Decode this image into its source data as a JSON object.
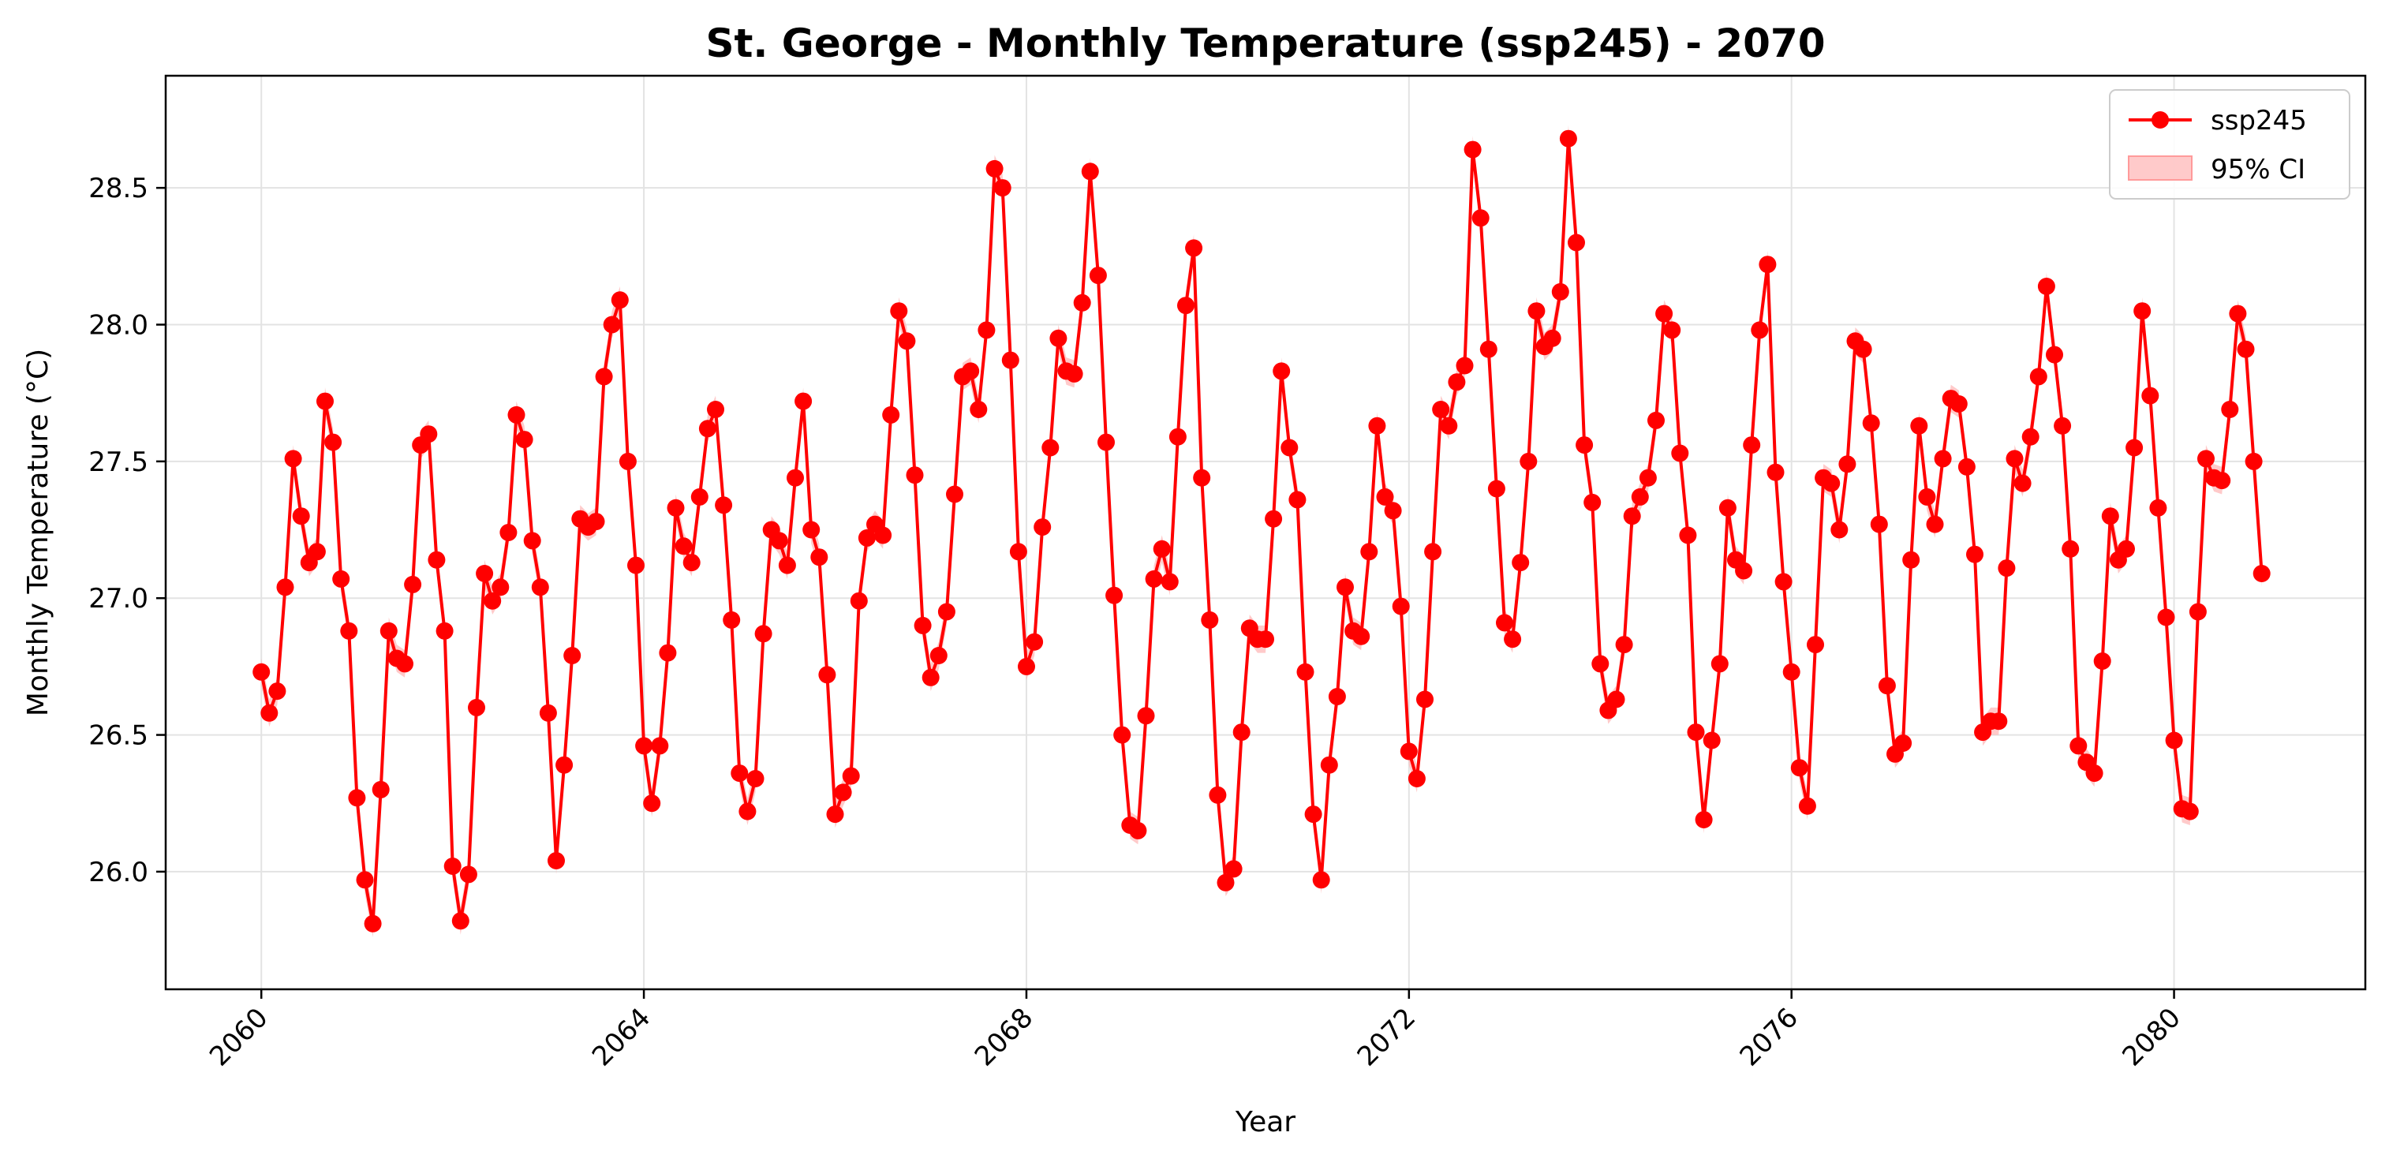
{
  "chart_data": {
    "type": "line",
    "title": "St. George - Monthly Temperature (ssp245) - 2070",
    "xlabel": "Year",
    "ylabel": "Monthly Temperature (°C)",
    "xlim": [
      2059.0,
      2082.0
    ],
    "ylim": [
      25.57,
      28.91
    ],
    "xticks": [
      2060,
      2064,
      2068,
      2072,
      2076,
      2080
    ],
    "yticks": [
      26.0,
      26.5,
      27.0,
      27.5,
      28.0,
      28.5
    ],
    "ytick_labels": [
      "26.0",
      "26.5",
      "27.0",
      "27.5",
      "28.0",
      "28.5"
    ],
    "grid": true,
    "legend": {
      "placement": "top-right",
      "entries": [
        {
          "label": "ssp245",
          "kind": "line-marker"
        },
        {
          "label": "95% CI",
          "kind": "band"
        }
      ]
    },
    "colors": {
      "line": "#ff0000",
      "band": "#ffb3b3"
    },
    "ci_halfwidth": 0.05,
    "series": [
      {
        "name": "ssp245",
        "x_start": 2060.0,
        "x_step_months": 1,
        "values": [
          26.73,
          26.58,
          26.66,
          27.04,
          27.51,
          27.3,
          27.13,
          27.17,
          27.72,
          27.57,
          27.07,
          26.88,
          26.27,
          25.97,
          25.81,
          26.3,
          26.88,
          26.78,
          26.76,
          27.05,
          27.56,
          27.6,
          27.14,
          26.88,
          26.02,
          25.82,
          25.99,
          26.6,
          27.09,
          26.99,
          27.04,
          27.24,
          27.67,
          27.58,
          27.21,
          27.04,
          26.58,
          26.04,
          26.39,
          26.79,
          27.29,
          27.26,
          27.28,
          27.81,
          28.0,
          28.09,
          27.5,
          27.12,
          26.46,
          26.25,
          26.46,
          26.8,
          27.33,
          27.19,
          27.13,
          27.37,
          27.62,
          27.69,
          27.34,
          26.92,
          26.36,
          26.22,
          26.34,
          26.87,
          27.25,
          27.21,
          27.12,
          27.44,
          27.72,
          27.25,
          27.15,
          26.72,
          26.21,
          26.29,
          26.35,
          26.99,
          27.22,
          27.27,
          27.23,
          27.67,
          28.05,
          27.94,
          27.45,
          26.9,
          26.71,
          26.79,
          26.95,
          27.38,
          27.81,
          27.83,
          27.69,
          27.98,
          28.57,
          28.5,
          27.87,
          27.17,
          26.75,
          26.84,
          27.26,
          27.55,
          27.95,
          27.83,
          27.82,
          28.08,
          28.56,
          28.18,
          27.57,
          27.01,
          26.5,
          26.17,
          26.15,
          26.57,
          27.07,
          27.18,
          27.06,
          27.59,
          28.07,
          28.28,
          27.44,
          26.92,
          26.28,
          25.96,
          26.01,
          26.51,
          26.89,
          26.85,
          26.85,
          27.29,
          27.83,
          27.55,
          27.36,
          26.73,
          26.21,
          25.97,
          26.39,
          26.64,
          27.04,
          26.88,
          26.86,
          27.17,
          27.63,
          27.37,
          27.32,
          26.97,
          26.44,
          26.34,
          26.63,
          27.17,
          27.69,
          27.63,
          27.79,
          27.85,
          28.64,
          28.39,
          27.91,
          27.4,
          26.91,
          26.85,
          27.13,
          27.5,
          28.05,
          27.92,
          27.95,
          28.12,
          28.68,
          28.3,
          27.56,
          27.35,
          26.76,
          26.59,
          26.63,
          26.83,
          27.3,
          27.37,
          27.44,
          27.65,
          28.04,
          27.98,
          27.53,
          27.23,
          26.51,
          26.19,
          26.48,
          26.76,
          27.33,
          27.14,
          27.1,
          27.56,
          27.98,
          28.22,
          27.46,
          27.06,
          26.73,
          26.38,
          26.24,
          26.83,
          27.44,
          27.42,
          27.25,
          27.49,
          27.94,
          27.91,
          27.64,
          27.27,
          26.68,
          26.43,
          26.47,
          27.14,
          27.63,
          27.37,
          27.27,
          27.51,
          27.73,
          27.71,
          27.48,
          27.16,
          26.51,
          26.55,
          26.55,
          27.11,
          27.51,
          27.42,
          27.59,
          27.81,
          28.14,
          27.89,
          27.63,
          27.18,
          26.46,
          26.4,
          26.36,
          26.77,
          27.3,
          27.14,
          27.18,
          27.55,
          28.05,
          27.74,
          27.33,
          26.93,
          26.48,
          26.23,
          26.22,
          26.95,
          27.51,
          27.44,
          27.43,
          27.69,
          28.04,
          27.91,
          27.5,
          27.09
        ]
      }
    ]
  }
}
